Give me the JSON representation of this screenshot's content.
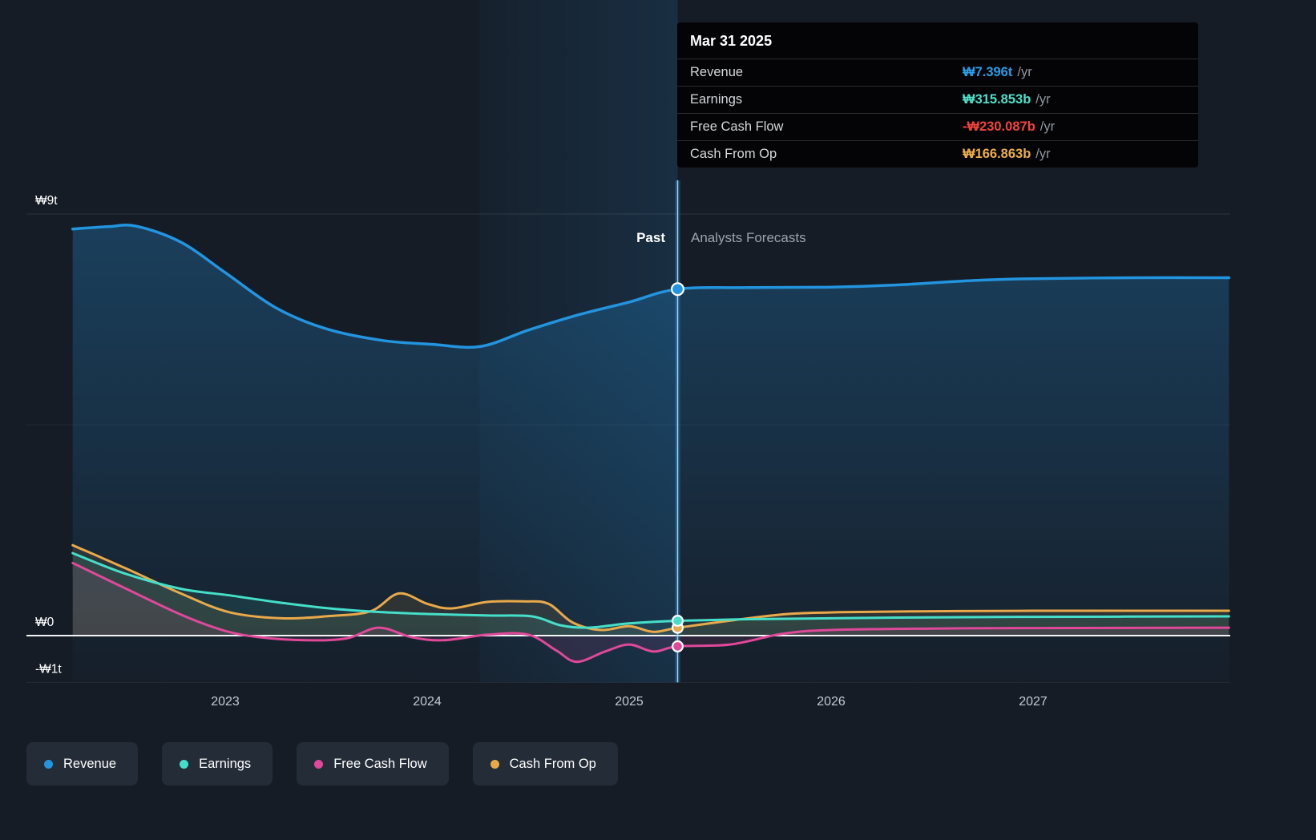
{
  "tooltip": {
    "date": "Mar 31 2025",
    "rows": [
      {
        "label": "Revenue",
        "value": "₩7.396t",
        "suffix": "/yr",
        "color": "#2B9DE8"
      },
      {
        "label": "Earnings",
        "value": "₩315.853b",
        "suffix": "/yr",
        "color": "#4EE0CB"
      },
      {
        "label": "Free Cash Flow",
        "value": "-₩230.087b",
        "suffix": "/yr",
        "color": "#F0443B"
      },
      {
        "label": "Cash From Op",
        "value": "₩166.863b",
        "suffix": "/yr",
        "color": "#EBAD4C"
      }
    ]
  },
  "chart_data": {
    "type": "area",
    "title": "",
    "unit": "KRW trillions",
    "past_label": "Past",
    "forecast_label": "Analysts Forecasts",
    "divider_x": 2025.24,
    "divider_date": "Mar 31 2025",
    "highlight_range": [
      2024.26,
      2025.24
    ],
    "x_domain": [
      2022.02,
      2027.98
    ],
    "y_domain": [
      -1,
      9
    ],
    "x_ticks": [
      2023,
      2024,
      2025,
      2026,
      2027
    ],
    "y_ticks": [
      {
        "label": "₩9t",
        "value": 9
      },
      {
        "label": "",
        "value": 4.5
      },
      {
        "label": "₩0",
        "value": 0
      },
      {
        "label": "-₩1t",
        "value": -1
      }
    ],
    "colors": {
      "background": "#161C26",
      "divider": "#A9D4F2",
      "zero_line": "#FFFFFF"
    },
    "series": [
      {
        "name": "Revenue",
        "color": "#2394DF",
        "width": 3.5,
        "baseline": "bottom",
        "marker": [
          2025.24,
          7.396
        ],
        "points": [
          [
            2022.245,
            8.68
          ],
          [
            2022.42,
            8.73
          ],
          [
            2022.56,
            8.74
          ],
          [
            2022.78,
            8.4
          ],
          [
            2023.0,
            7.75
          ],
          [
            2023.25,
            7.0
          ],
          [
            2023.5,
            6.55
          ],
          [
            2023.78,
            6.3
          ],
          [
            2024.02,
            6.22
          ],
          [
            2024.26,
            6.17
          ],
          [
            2024.5,
            6.52
          ],
          [
            2024.75,
            6.85
          ],
          [
            2025.0,
            7.12
          ],
          [
            2025.24,
            7.396
          ],
          [
            2025.6,
            7.43
          ],
          [
            2026.0,
            7.44
          ],
          [
            2026.3,
            7.48
          ],
          [
            2026.7,
            7.58
          ],
          [
            2027.0,
            7.62
          ],
          [
            2027.5,
            7.64
          ],
          [
            2027.97,
            7.64
          ]
        ]
      },
      {
        "name": "Free Cash Flow",
        "color": "#E0489A",
        "width": 3,
        "baseline": "zero",
        "marker": [
          2025.24,
          -0.23
        ],
        "points": [
          [
            2022.245,
            1.55
          ],
          [
            2022.5,
            1.02
          ],
          [
            2022.78,
            0.45
          ],
          [
            2023.0,
            0.1
          ],
          [
            2023.18,
            -0.04
          ],
          [
            2023.4,
            -0.1
          ],
          [
            2023.6,
            -0.06
          ],
          [
            2023.76,
            0.17
          ],
          [
            2023.92,
            -0.03
          ],
          [
            2024.08,
            -0.1
          ],
          [
            2024.3,
            0.02
          ],
          [
            2024.5,
            0.02
          ],
          [
            2024.64,
            -0.32
          ],
          [
            2024.74,
            -0.56
          ],
          [
            2024.88,
            -0.34
          ],
          [
            2025.0,
            -0.19
          ],
          [
            2025.12,
            -0.34
          ],
          [
            2025.24,
            -0.23
          ],
          [
            2025.5,
            -0.19
          ],
          [
            2025.76,
            0.04
          ],
          [
            2026.0,
            0.12
          ],
          [
            2026.5,
            0.15
          ],
          [
            2027.0,
            0.16
          ],
          [
            2027.97,
            0.17
          ]
        ]
      },
      {
        "name": "Cash From Op",
        "color": "#E9A94A",
        "width": 3,
        "baseline": "zero",
        "marker": [
          2025.24,
          0.167
        ],
        "points": [
          [
            2022.245,
            1.93
          ],
          [
            2022.5,
            1.45
          ],
          [
            2022.78,
            0.9
          ],
          [
            2023.02,
            0.5
          ],
          [
            2023.28,
            0.37
          ],
          [
            2023.52,
            0.42
          ],
          [
            2023.72,
            0.52
          ],
          [
            2023.86,
            0.9
          ],
          [
            2024.0,
            0.68
          ],
          [
            2024.12,
            0.58
          ],
          [
            2024.3,
            0.72
          ],
          [
            2024.48,
            0.73
          ],
          [
            2024.6,
            0.68
          ],
          [
            2024.72,
            0.28
          ],
          [
            2024.86,
            0.12
          ],
          [
            2025.0,
            0.2
          ],
          [
            2025.12,
            0.08
          ],
          [
            2025.24,
            0.167
          ],
          [
            2025.5,
            0.32
          ],
          [
            2025.78,
            0.46
          ],
          [
            2026.05,
            0.5
          ],
          [
            2026.5,
            0.52
          ],
          [
            2027.0,
            0.53
          ],
          [
            2027.97,
            0.53
          ]
        ]
      },
      {
        "name": "Earnings",
        "color": "#45DFC9",
        "width": 3,
        "baseline": "zero",
        "marker": [
          2025.24,
          0.316
        ],
        "points": [
          [
            2022.245,
            1.76
          ],
          [
            2022.5,
            1.33
          ],
          [
            2022.78,
            1.0
          ],
          [
            2023.02,
            0.86
          ],
          [
            2023.28,
            0.7
          ],
          [
            2023.52,
            0.58
          ],
          [
            2023.78,
            0.5
          ],
          [
            2024.02,
            0.46
          ],
          [
            2024.3,
            0.43
          ],
          [
            2024.52,
            0.41
          ],
          [
            2024.66,
            0.22
          ],
          [
            2024.8,
            0.17
          ],
          [
            2025.0,
            0.26
          ],
          [
            2025.24,
            0.316
          ],
          [
            2025.6,
            0.35
          ],
          [
            2026.0,
            0.37
          ],
          [
            2026.5,
            0.39
          ],
          [
            2027.0,
            0.4
          ],
          [
            2027.97,
            0.41
          ]
        ]
      }
    ]
  },
  "legend": [
    {
      "label": "Revenue",
      "color": "#2394DF"
    },
    {
      "label": "Earnings",
      "color": "#45DFC9"
    },
    {
      "label": "Free Cash Flow",
      "color": "#E0489A"
    },
    {
      "label": "Cash From Op",
      "color": "#E9A94A"
    }
  ]
}
